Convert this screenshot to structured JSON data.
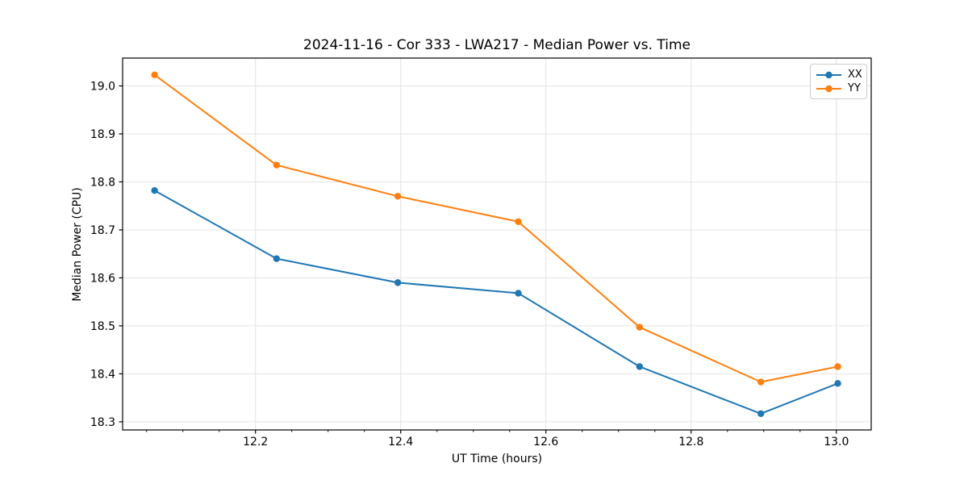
{
  "chart_data": {
    "type": "line",
    "title": "2024-11-16 - Cor 333 - LWA217 - Median Power vs. Time",
    "xlabel": "UT Time (hours)",
    "ylabel": "Median Power (CPU)",
    "x": [
      12.061,
      12.229,
      12.396,
      12.562,
      12.729,
      12.896,
      13.002
    ],
    "series": [
      {
        "name": "XX",
        "color": "#1f77b4",
        "values": [
          18.782,
          18.64,
          18.59,
          18.568,
          18.415,
          18.317,
          18.38
        ]
      },
      {
        "name": "YY",
        "color": "#ff7f0e",
        "values": [
          19.023,
          18.835,
          18.77,
          18.717,
          18.497,
          18.383,
          18.415
        ]
      }
    ],
    "xlim": [
      12.017,
      13.048
    ],
    "ylim": [
      18.283,
      19.058
    ],
    "x_major_ticks": [
      12.2,
      12.4,
      12.6,
      12.8,
      13.0
    ],
    "x_tick_labels": [
      "12.2",
      "12.4",
      "12.6",
      "12.8",
      "13.0"
    ],
    "x_minor_step": 0.05,
    "y_major_ticks": [
      18.3,
      18.4,
      18.5,
      18.6,
      18.7,
      18.8,
      18.9,
      19.0
    ],
    "y_tick_labels": [
      "18.3",
      "18.4",
      "18.5",
      "18.6",
      "18.7",
      "18.8",
      "18.9",
      "19.0"
    ],
    "grid": true,
    "grid_color": "#e3e3e3",
    "spine_color": "#000000",
    "legend_position": "upper right",
    "marker": "circle",
    "marker_radius": 4.2,
    "line_width": 2
  }
}
